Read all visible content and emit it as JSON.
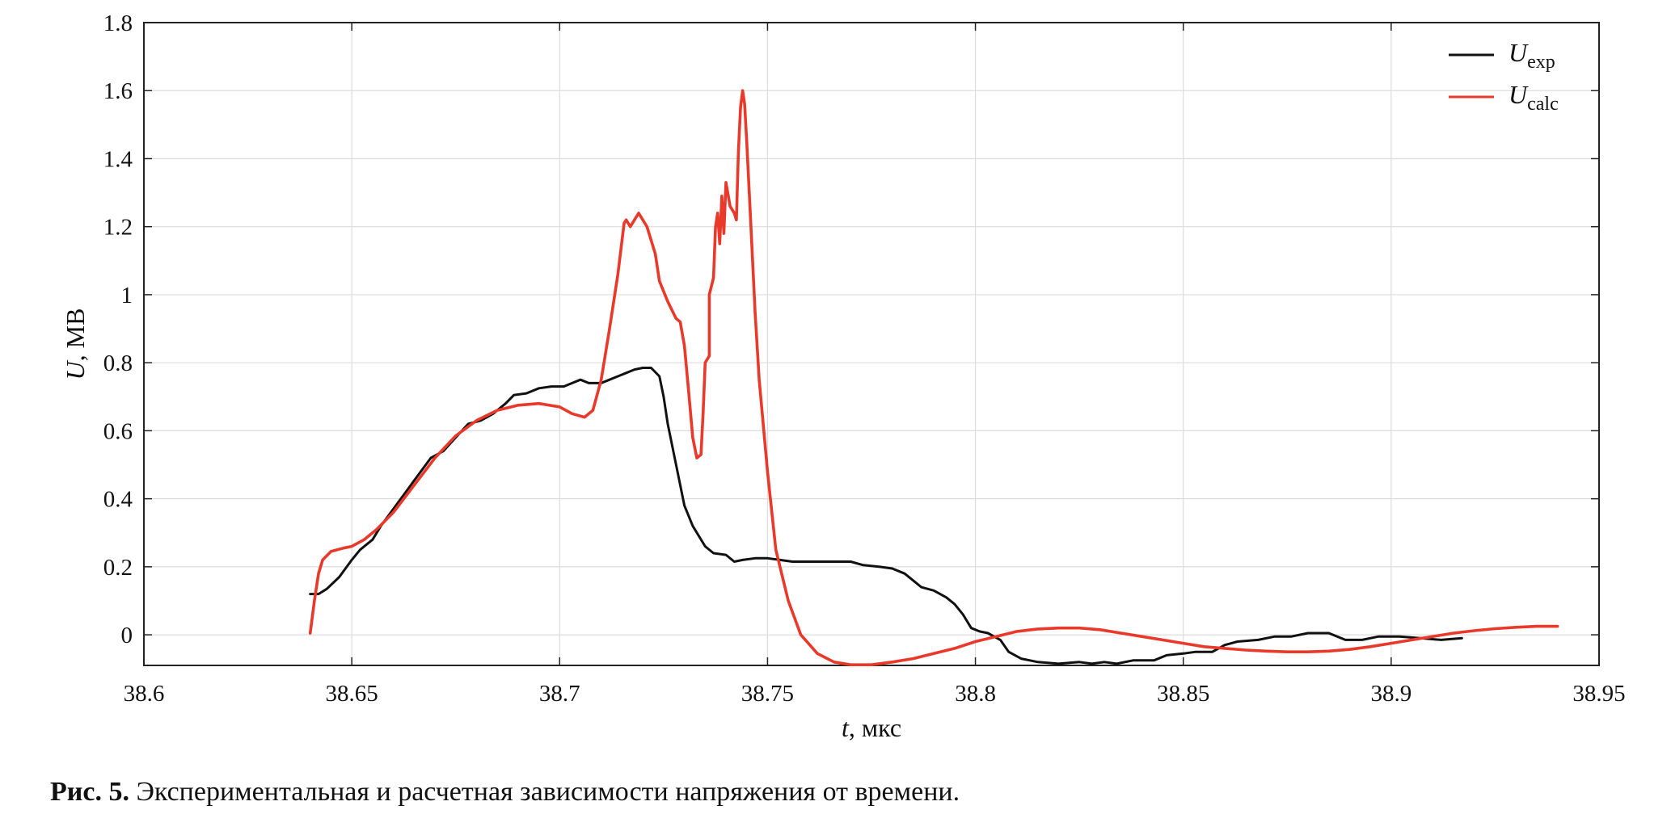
{
  "chart_data": {
    "type": "line",
    "xlabel": {
      "var": "t",
      "unit": ", мкс"
    },
    "ylabel": {
      "var": "U",
      "unit": ", МВ"
    },
    "xlim": [
      38.6,
      38.95
    ],
    "ylim": [
      -0.09,
      1.8
    ],
    "xticks": [
      38.6,
      38.65,
      38.7,
      38.75,
      38.8,
      38.85,
      38.9,
      38.95
    ],
    "xtick_labels": [
      "38.6",
      "38.65",
      "38.7",
      "38.75",
      "38.8",
      "38.85",
      "38.9",
      "38.95"
    ],
    "yticks": [
      0,
      0.2,
      0.4,
      0.6,
      0.8,
      1,
      1.2,
      1.4,
      1.6,
      1.8
    ],
    "ytick_labels": [
      "0",
      "0.2",
      "0.4",
      "0.6",
      "0.8",
      "1",
      "1.2",
      "1.4",
      "1.6",
      "1.8"
    ],
    "grid": true,
    "legend_position": "top-right",
    "series": [
      {
        "name": "U",
        "name_sub": "exp",
        "color": "#111111",
        "points": [
          [
            38.64,
            0.12
          ],
          [
            38.642,
            0.12
          ],
          [
            38.644,
            0.135
          ],
          [
            38.647,
            0.17
          ],
          [
            38.65,
            0.22
          ],
          [
            38.652,
            0.25
          ],
          [
            38.655,
            0.28
          ],
          [
            38.657,
            0.32
          ],
          [
            38.66,
            0.37
          ],
          [
            38.663,
            0.42
          ],
          [
            38.666,
            0.47
          ],
          [
            38.669,
            0.52
          ],
          [
            38.672,
            0.54
          ],
          [
            38.675,
            0.58
          ],
          [
            38.678,
            0.62
          ],
          [
            38.681,
            0.63
          ],
          [
            38.684,
            0.65
          ],
          [
            38.687,
            0.68
          ],
          [
            38.689,
            0.705
          ],
          [
            38.692,
            0.71
          ],
          [
            38.695,
            0.725
          ],
          [
            38.698,
            0.73
          ],
          [
            38.701,
            0.73
          ],
          [
            38.703,
            0.74
          ],
          [
            38.705,
            0.75
          ],
          [
            38.707,
            0.74
          ],
          [
            38.71,
            0.74
          ],
          [
            38.712,
            0.75
          ],
          [
            38.714,
            0.76
          ],
          [
            38.716,
            0.77
          ],
          [
            38.718,
            0.78
          ],
          [
            38.72,
            0.785
          ],
          [
            38.722,
            0.785
          ],
          [
            38.724,
            0.76
          ],
          [
            38.725,
            0.7
          ],
          [
            38.726,
            0.62
          ],
          [
            38.728,
            0.5
          ],
          [
            38.73,
            0.38
          ],
          [
            38.732,
            0.32
          ],
          [
            38.735,
            0.26
          ],
          [
            38.737,
            0.24
          ],
          [
            38.74,
            0.235
          ],
          [
            38.742,
            0.215
          ],
          [
            38.744,
            0.22
          ],
          [
            38.747,
            0.225
          ],
          [
            38.75,
            0.225
          ],
          [
            38.753,
            0.22
          ],
          [
            38.756,
            0.215
          ],
          [
            38.76,
            0.215
          ],
          [
            38.765,
            0.215
          ],
          [
            38.77,
            0.215
          ],
          [
            38.773,
            0.205
          ],
          [
            38.777,
            0.2
          ],
          [
            38.78,
            0.195
          ],
          [
            38.783,
            0.18
          ],
          [
            38.785,
            0.16
          ],
          [
            38.787,
            0.14
          ],
          [
            38.79,
            0.13
          ],
          [
            38.793,
            0.11
          ],
          [
            38.795,
            0.09
          ],
          [
            38.797,
            0.06
          ],
          [
            38.799,
            0.02
          ],
          [
            38.801,
            0.01
          ],
          [
            38.803,
            0.005
          ],
          [
            38.806,
            -0.015
          ],
          [
            38.808,
            -0.05
          ],
          [
            38.811,
            -0.07
          ],
          [
            38.815,
            -0.08
          ],
          [
            38.82,
            -0.085
          ],
          [
            38.825,
            -0.08
          ],
          [
            38.828,
            -0.085
          ],
          [
            38.831,
            -0.08
          ],
          [
            38.834,
            -0.085
          ],
          [
            38.838,
            -0.075
          ],
          [
            38.843,
            -0.075
          ],
          [
            38.846,
            -0.06
          ],
          [
            38.85,
            -0.055
          ],
          [
            38.853,
            -0.05
          ],
          [
            38.857,
            -0.05
          ],
          [
            38.86,
            -0.03
          ],
          [
            38.863,
            -0.02
          ],
          [
            38.868,
            -0.015
          ],
          [
            38.872,
            -0.005
          ],
          [
            38.876,
            -0.005
          ],
          [
            38.88,
            0.005
          ],
          [
            38.885,
            0.005
          ],
          [
            38.889,
            -0.015
          ],
          [
            38.893,
            -0.015
          ],
          [
            38.897,
            -0.005
          ],
          [
            38.902,
            -0.005
          ],
          [
            38.907,
            -0.01
          ],
          [
            38.912,
            -0.015
          ],
          [
            38.917,
            -0.01
          ]
        ]
      },
      {
        "name": "U",
        "name_sub": "calc",
        "color": "#e8392b",
        "points": [
          [
            38.64,
            0.005
          ],
          [
            38.641,
            0.1
          ],
          [
            38.642,
            0.18
          ],
          [
            38.643,
            0.22
          ],
          [
            38.645,
            0.245
          ],
          [
            38.648,
            0.255
          ],
          [
            38.65,
            0.26
          ],
          [
            38.653,
            0.28
          ],
          [
            38.656,
            0.31
          ],
          [
            38.66,
            0.36
          ],
          [
            38.665,
            0.44
          ],
          [
            38.67,
            0.52
          ],
          [
            38.675,
            0.585
          ],
          [
            38.68,
            0.63
          ],
          [
            38.685,
            0.66
          ],
          [
            38.69,
            0.675
          ],
          [
            38.695,
            0.68
          ],
          [
            38.7,
            0.67
          ],
          [
            38.703,
            0.65
          ],
          [
            38.706,
            0.64
          ],
          [
            38.708,
            0.66
          ],
          [
            38.71,
            0.75
          ],
          [
            38.712,
            0.9
          ],
          [
            38.714,
            1.06
          ],
          [
            38.7155,
            1.21
          ],
          [
            38.716,
            1.22
          ],
          [
            38.717,
            1.2
          ],
          [
            38.719,
            1.24
          ],
          [
            38.721,
            1.2
          ],
          [
            38.723,
            1.12
          ],
          [
            38.724,
            1.04
          ],
          [
            38.726,
            0.98
          ],
          [
            38.728,
            0.93
          ],
          [
            38.729,
            0.92
          ],
          [
            38.73,
            0.85
          ],
          [
            38.731,
            0.72
          ],
          [
            38.732,
            0.58
          ],
          [
            38.733,
            0.52
          ],
          [
            38.734,
            0.53
          ],
          [
            38.7345,
            0.65
          ],
          [
            38.735,
            0.8
          ],
          [
            38.736,
            0.82
          ],
          [
            38.736,
            1.0
          ],
          [
            38.737,
            1.05
          ],
          [
            38.7375,
            1.2
          ],
          [
            38.738,
            1.24
          ],
          [
            38.7385,
            1.15
          ],
          [
            38.739,
            1.29
          ],
          [
            38.7395,
            1.18
          ],
          [
            38.74,
            1.33
          ],
          [
            38.741,
            1.26
          ],
          [
            38.742,
            1.24
          ],
          [
            38.7425,
            1.22
          ],
          [
            38.743,
            1.42
          ],
          [
            38.7435,
            1.55
          ],
          [
            38.744,
            1.6
          ],
          [
            38.7445,
            1.56
          ],
          [
            38.745,
            1.45
          ],
          [
            38.746,
            1.2
          ],
          [
            38.747,
            0.95
          ],
          [
            38.748,
            0.75
          ],
          [
            38.75,
            0.48
          ],
          [
            38.752,
            0.25
          ],
          [
            38.755,
            0.1
          ],
          [
            38.758,
            0.0
          ],
          [
            38.762,
            -0.055
          ],
          [
            38.766,
            -0.08
          ],
          [
            38.77,
            -0.088
          ],
          [
            38.775,
            -0.088
          ],
          [
            38.78,
            -0.08
          ],
          [
            38.785,
            -0.07
          ],
          [
            38.79,
            -0.055
          ],
          [
            38.795,
            -0.04
          ],
          [
            38.8,
            -0.02
          ],
          [
            38.805,
            -0.005
          ],
          [
            38.81,
            0.01
          ],
          [
            38.815,
            0.017
          ],
          [
            38.82,
            0.02
          ],
          [
            38.825,
            0.02
          ],
          [
            38.83,
            0.015
          ],
          [
            38.835,
            0.005
          ],
          [
            38.84,
            -0.005
          ],
          [
            38.845,
            -0.015
          ],
          [
            38.85,
            -0.025
          ],
          [
            38.855,
            -0.035
          ],
          [
            38.86,
            -0.04
          ],
          [
            38.865,
            -0.045
          ],
          [
            38.87,
            -0.048
          ],
          [
            38.875,
            -0.05
          ],
          [
            38.88,
            -0.05
          ],
          [
            38.885,
            -0.048
          ],
          [
            38.89,
            -0.043
          ],
          [
            38.895,
            -0.035
          ],
          [
            38.9,
            -0.025
          ],
          [
            38.905,
            -0.015
          ],
          [
            38.91,
            -0.005
          ],
          [
            38.915,
            0.005
          ],
          [
            38.92,
            0.012
          ],
          [
            38.925,
            0.018
          ],
          [
            38.93,
            0.022
          ],
          [
            38.935,
            0.025
          ],
          [
            38.94,
            0.025
          ]
        ]
      }
    ]
  },
  "caption": {
    "figure_number": "Рис. 5.",
    "text": " Экспериментальная и расчетная зависимости напряжения от времени."
  }
}
